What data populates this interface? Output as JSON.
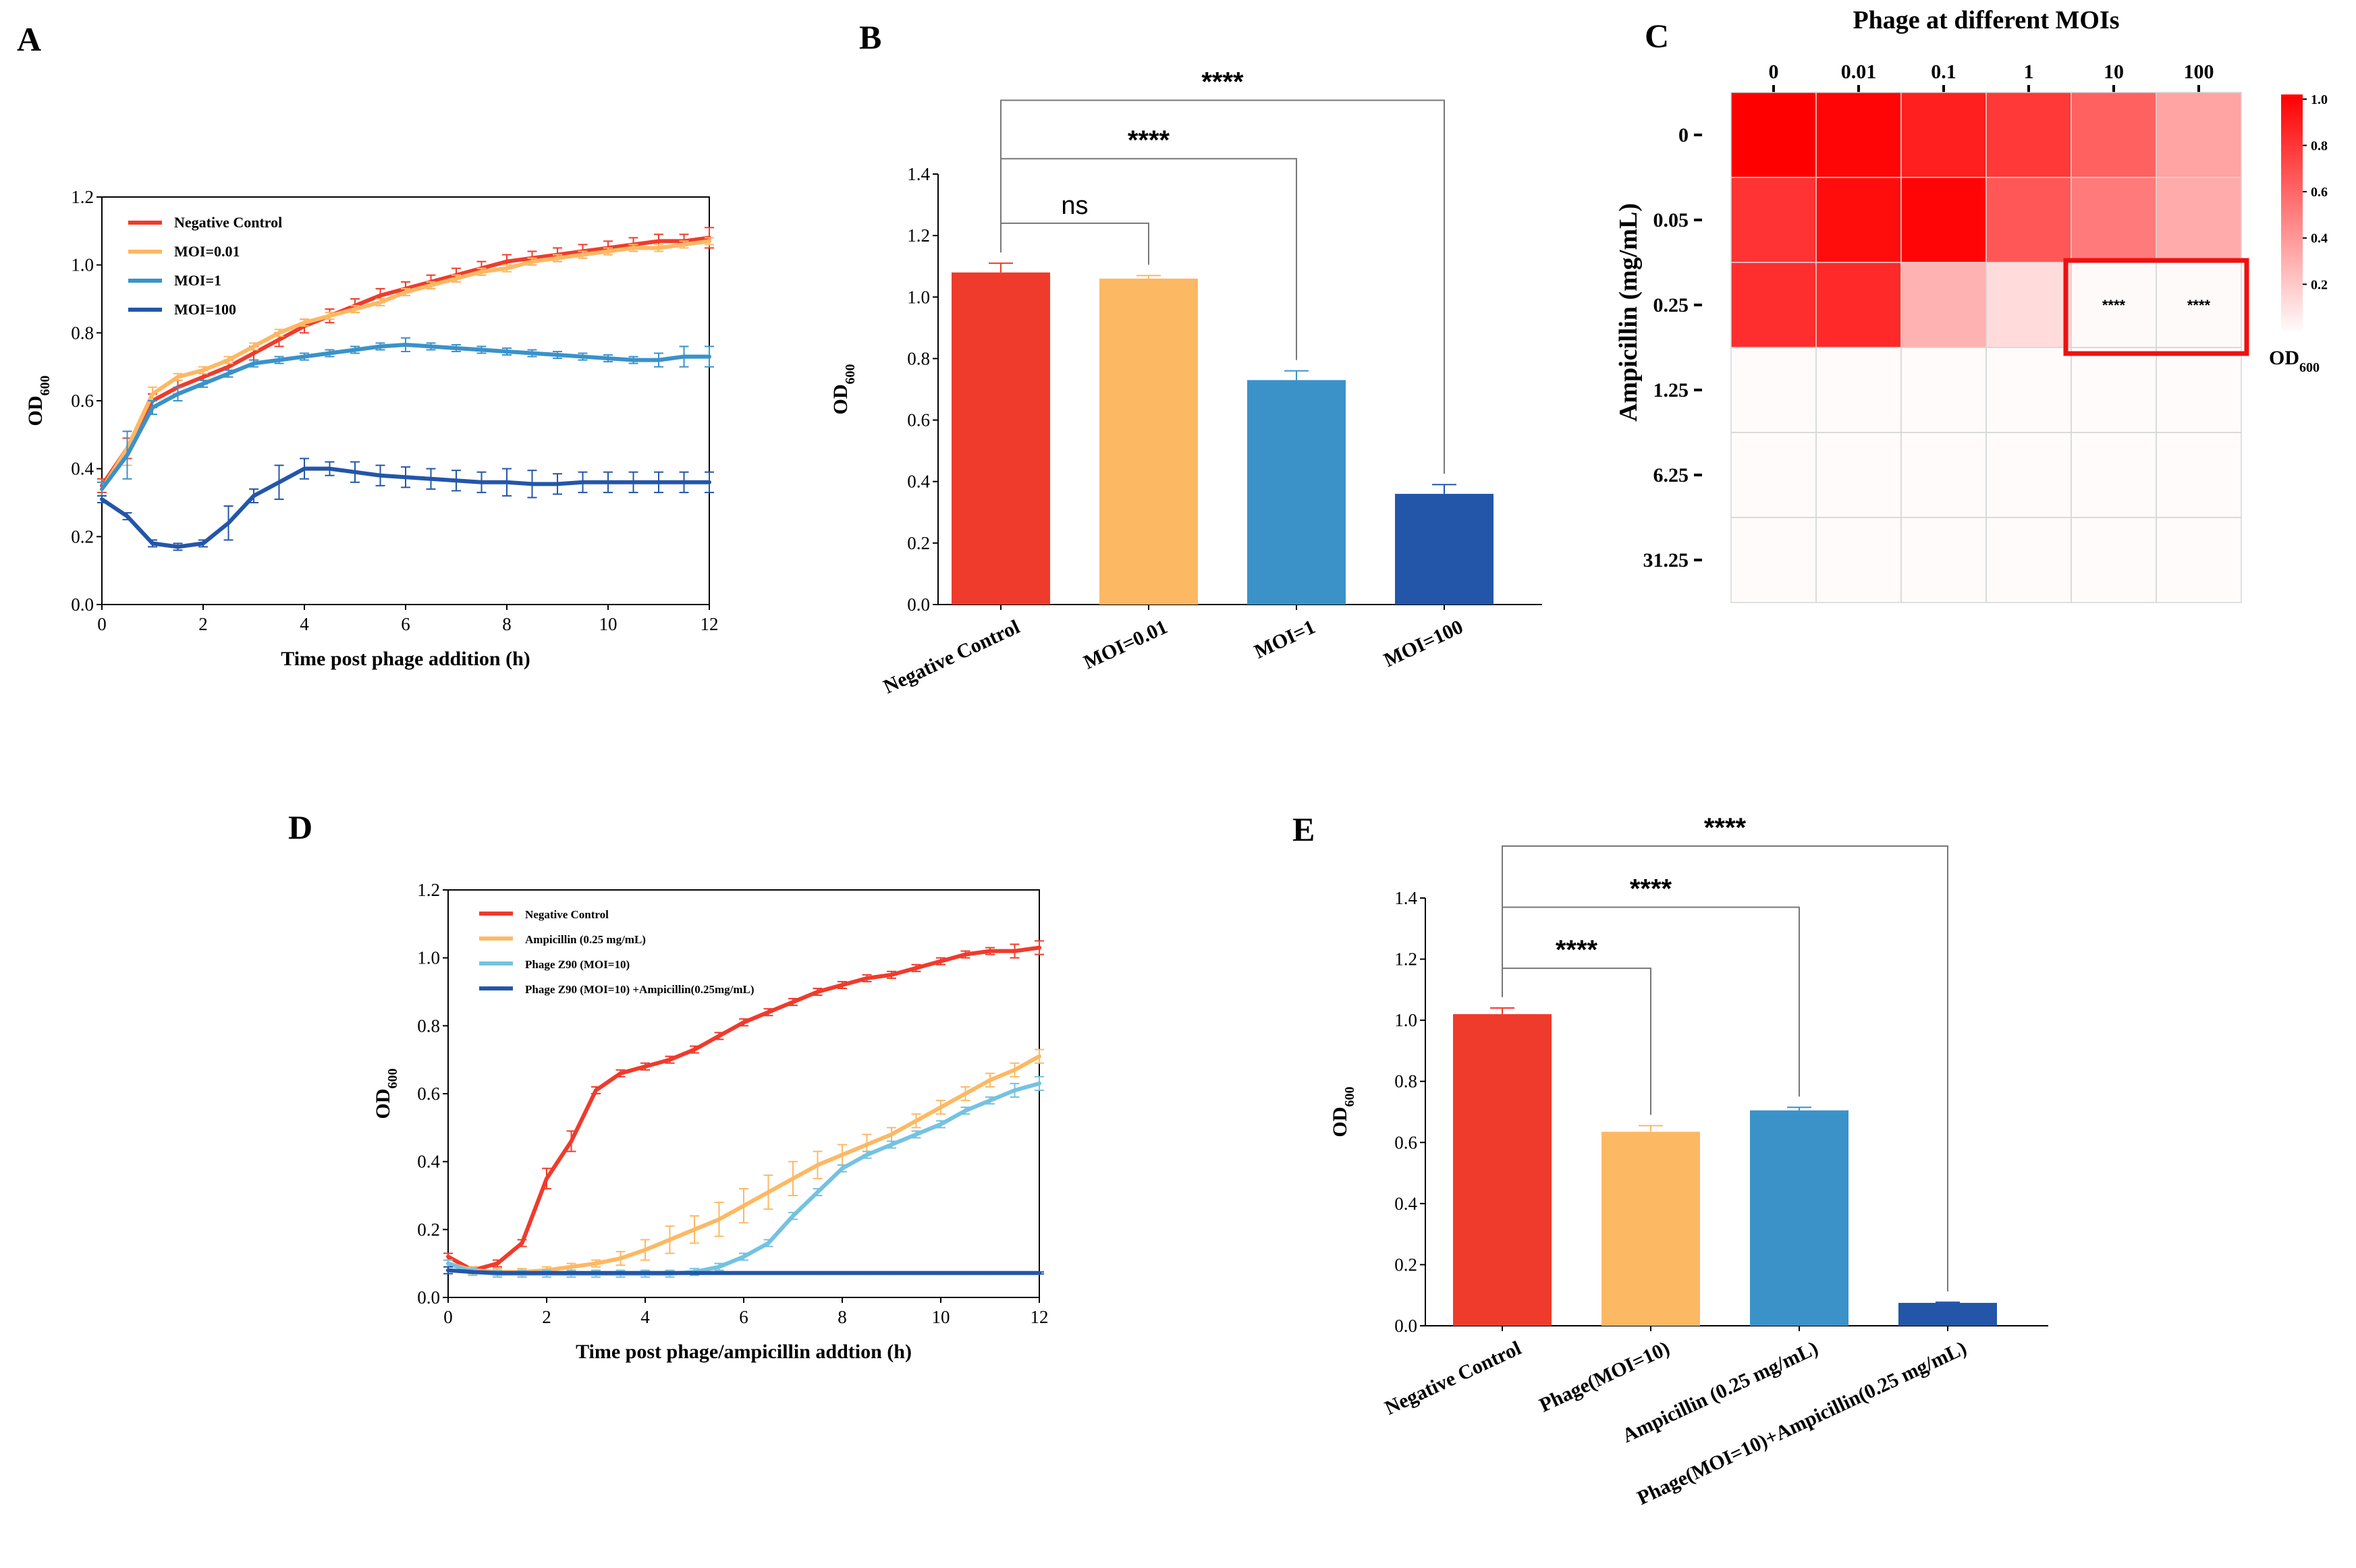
{
  "panel_labels": [
    "A",
    "B",
    "C",
    "D",
    "E"
  ],
  "colors": {
    "neg": "#ef3b2c",
    "orange": "#fdb863",
    "blue": "#3a92c9",
    "dblue": "#2356a8",
    "lblue": "#74c2e1",
    "heat": "#ff0000",
    "highlight": "#ee1111"
  },
  "chart_data": [
    {
      "id": "A",
      "type": "line",
      "xlabel": "Time post phage addition (h)",
      "ylabel": "OD",
      "ylabel_sub": "600",
      "xlim": [
        0,
        12
      ],
      "ylim": [
        0,
        1.2
      ],
      "xticks": [
        "0",
        "2",
        "4",
        "6",
        "8",
        "10",
        "12"
      ],
      "yticks": [
        "0.0",
        "0.2",
        "0.4",
        "0.6",
        "0.8",
        "1.0",
        "1.2"
      ],
      "x": [
        0,
        0.5,
        1,
        1.5,
        2,
        2.5,
        3,
        3.5,
        4,
        4.5,
        5,
        5.5,
        6,
        6.5,
        7,
        7.5,
        8,
        8.5,
        9,
        9.5,
        10,
        10.5,
        11,
        11.5,
        12
      ],
      "series": [
        {
          "name": "Negative Control",
          "color": "#ef3b2c",
          "values": [
            0.35,
            0.46,
            0.6,
            0.64,
            0.67,
            0.7,
            0.74,
            0.78,
            0.82,
            0.85,
            0.88,
            0.91,
            0.93,
            0.95,
            0.97,
            0.99,
            1.01,
            1.02,
            1.03,
            1.04,
            1.05,
            1.06,
            1.07,
            1.07,
            1.08
          ],
          "errors": [
            0.02,
            0.03,
            0.02,
            0.02,
            0.02,
            0.02,
            0.02,
            0.02,
            0.02,
            0.02,
            0.02,
            0.02,
            0.02,
            0.02,
            0.02,
            0.02,
            0.02,
            0.02,
            0.02,
            0.02,
            0.02,
            0.02,
            0.02,
            0.02,
            0.03
          ]
        },
        {
          "name": "MOI=0.01",
          "color": "#fdb863",
          "values": [
            0.34,
            0.46,
            0.62,
            0.67,
            0.69,
            0.72,
            0.76,
            0.8,
            0.83,
            0.85,
            0.87,
            0.89,
            0.92,
            0.94,
            0.96,
            0.98,
            0.99,
            1.01,
            1.02,
            1.03,
            1.04,
            1.05,
            1.05,
            1.06,
            1.07
          ],
          "errors": [
            0.02,
            0.05,
            0.02,
            0.01,
            0.01,
            0.01,
            0.01,
            0.01,
            0.01,
            0.01,
            0.01,
            0.01,
            0.01,
            0.01,
            0.01,
            0.01,
            0.01,
            0.01,
            0.01,
            0.01,
            0.01,
            0.01,
            0.01,
            0.01,
            0.01
          ]
        },
        {
          "name": "MOI=1",
          "color": "#3a92c9",
          "values": [
            0.34,
            0.44,
            0.58,
            0.62,
            0.65,
            0.68,
            0.71,
            0.72,
            0.73,
            0.74,
            0.75,
            0.76,
            0.765,
            0.76,
            0.755,
            0.75,
            0.745,
            0.74,
            0.735,
            0.73,
            0.725,
            0.72,
            0.72,
            0.73,
            0.73
          ],
          "errors": [
            0.02,
            0.07,
            0.02,
            0.02,
            0.01,
            0.01,
            0.01,
            0.01,
            0.01,
            0.01,
            0.01,
            0.01,
            0.02,
            0.01,
            0.01,
            0.01,
            0.01,
            0.01,
            0.01,
            0.01,
            0.01,
            0.01,
            0.02,
            0.03,
            0.03
          ]
        },
        {
          "name": "MOI=100",
          "color": "#2356a8",
          "values": [
            0.31,
            0.26,
            0.18,
            0.17,
            0.18,
            0.24,
            0.32,
            0.36,
            0.4,
            0.4,
            0.39,
            0.38,
            0.375,
            0.37,
            0.365,
            0.36,
            0.36,
            0.355,
            0.355,
            0.36,
            0.36,
            0.36,
            0.36,
            0.36,
            0.36
          ],
          "errors": [
            0.01,
            0.01,
            0.01,
            0.01,
            0.01,
            0.05,
            0.02,
            0.05,
            0.03,
            0.02,
            0.03,
            0.03,
            0.03,
            0.03,
            0.03,
            0.03,
            0.04,
            0.04,
            0.03,
            0.03,
            0.03,
            0.03,
            0.03,
            0.03,
            0.03
          ]
        }
      ]
    },
    {
      "id": "B",
      "type": "bar",
      "ylabel": "OD",
      "ylabel_sub": "600",
      "ylim": [
        0,
        1.4
      ],
      "yticks": [
        "0.0",
        "0.2",
        "0.4",
        "0.6",
        "0.8",
        "1.0",
        "1.2",
        "1.4"
      ],
      "categories": [
        "Negative Control",
        "MOI=0.01",
        "MOI=1",
        "MOI=100"
      ],
      "values": [
        1.08,
        1.06,
        0.73,
        0.36
      ],
      "errors": [
        0.03,
        0.01,
        0.03,
        0.03
      ],
      "bar_colors": [
        "#ef3b2c",
        "#fdb863",
        "#3a92c9",
        "#2356a8"
      ],
      "comparisons": [
        {
          "from": 0,
          "to": 1,
          "label": "ns",
          "level": 1.24
        },
        {
          "from": 0,
          "to": 2,
          "label": "****",
          "level": 1.45
        },
        {
          "from": 0,
          "to": 3,
          "label": "****",
          "level": 1.64
        }
      ]
    },
    {
      "id": "C",
      "type": "heatmap",
      "title": "Phage at different MOIs",
      "ylabel": "Ampicillin (mg/mL)",
      "colorbar_label": "OD",
      "colorbar_sub": "600",
      "colorbar_ticks": [
        "1.0",
        "0.8",
        "0.6",
        "0.4",
        "0.2"
      ],
      "colorbar_tick_values": [
        1.0,
        0.8,
        0.6,
        0.4,
        0.2
      ],
      "columns": [
        "0",
        "0.01",
        "0.1",
        "1",
        "10",
        "100"
      ],
      "rows": [
        "0",
        "0.05",
        "0.25",
        "1.25",
        "6.25",
        "31.25"
      ],
      "values": [
        [
          1.0,
          0.98,
          0.88,
          0.78,
          0.62,
          0.36
        ],
        [
          0.8,
          0.95,
          0.98,
          0.66,
          0.52,
          0.33
        ],
        [
          0.82,
          0.84,
          0.3,
          0.14,
          0.02,
          0.02
        ],
        [
          0.01,
          0.01,
          0.01,
          0.01,
          0.01,
          0.01
        ],
        [
          0.01,
          0.01,
          0.01,
          0.01,
          0.01,
          0.01
        ],
        [
          0.01,
          0.01,
          0.01,
          0.01,
          0.01,
          0.01
        ]
      ],
      "annotations": [
        {
          "row": 2,
          "col": 4,
          "label": "****"
        },
        {
          "row": 2,
          "col": 5,
          "label": "****"
        }
      ]
    },
    {
      "id": "D",
      "type": "line",
      "xlabel": "Time post phage/ampicillin addtion (h)",
      "ylabel": "OD",
      "ylabel_sub": "600",
      "xlim": [
        0,
        12
      ],
      "ylim": [
        0,
        1.2
      ],
      "xticks": [
        "0",
        "2",
        "4",
        "6",
        "8",
        "10",
        "12"
      ],
      "yticks": [
        "0.0",
        "0.2",
        "0.4",
        "0.6",
        "0.8",
        "1.0",
        "1.2"
      ],
      "x": [
        0,
        0.5,
        1,
        1.5,
        2,
        2.5,
        3,
        3.5,
        4,
        4.5,
        5,
        5.5,
        6,
        6.5,
        7,
        7.5,
        8,
        8.5,
        9,
        9.5,
        10,
        10.5,
        11,
        11.5,
        12
      ],
      "series": [
        {
          "name": "Negative Control",
          "color": "#ef3b2c",
          "values": [
            0.12,
            0.08,
            0.1,
            0.16,
            0.35,
            0.46,
            0.61,
            0.66,
            0.68,
            0.7,
            0.73,
            0.77,
            0.81,
            0.84,
            0.87,
            0.9,
            0.92,
            0.94,
            0.95,
            0.97,
            0.99,
            1.01,
            1.02,
            1.02,
            1.03
          ],
          "errors": [
            0.01,
            0.01,
            0.01,
            0.01,
            0.03,
            0.03,
            0.01,
            0.01,
            0.01,
            0.01,
            0.01,
            0.01,
            0.01,
            0.01,
            0.01,
            0.01,
            0.01,
            0.01,
            0.01,
            0.01,
            0.01,
            0.01,
            0.01,
            0.02,
            0.02
          ]
        },
        {
          "name": "Ampicillin (0.25 mg/mL)",
          "color": "#fdb863",
          "values": [
            0.1,
            0.08,
            0.075,
            0.075,
            0.08,
            0.09,
            0.1,
            0.115,
            0.14,
            0.17,
            0.2,
            0.23,
            0.27,
            0.31,
            0.35,
            0.39,
            0.42,
            0.45,
            0.48,
            0.52,
            0.56,
            0.6,
            0.64,
            0.67,
            0.71
          ],
          "errors": [
            0.01,
            0.01,
            0.01,
            0.01,
            0.01,
            0.01,
            0.01,
            0.02,
            0.03,
            0.04,
            0.04,
            0.05,
            0.05,
            0.05,
            0.05,
            0.04,
            0.03,
            0.03,
            0.02,
            0.02,
            0.02,
            0.02,
            0.02,
            0.02,
            0.02
          ]
        },
        {
          "name": "Phage Z90 (MOI=10)",
          "color": "#74c2e1",
          "values": [
            0.1,
            0.075,
            0.07,
            0.07,
            0.07,
            0.07,
            0.07,
            0.07,
            0.07,
            0.07,
            0.075,
            0.09,
            0.12,
            0.16,
            0.24,
            0.31,
            0.38,
            0.42,
            0.45,
            0.48,
            0.51,
            0.55,
            0.58,
            0.61,
            0.63
          ],
          "errors": [
            0.01,
            0.01,
            0.01,
            0.01,
            0.01,
            0.01,
            0.01,
            0.01,
            0.01,
            0.01,
            0.01,
            0.01,
            0.01,
            0.01,
            0.01,
            0.01,
            0.01,
            0.01,
            0.01,
            0.01,
            0.01,
            0.01,
            0.01,
            0.02,
            0.02
          ]
        },
        {
          "name": "Phage Z90 (MOI=10) +Ampicillin(0.25mg/mL)",
          "color": "#2356a8",
          "values": [
            0.08,
            0.075,
            0.072,
            0.072,
            0.072,
            0.072,
            0.072,
            0.072,
            0.072,
            0.072,
            0.072,
            0.072,
            0.072,
            0.072,
            0.072,
            0.072,
            0.072,
            0.072,
            0.072,
            0.072,
            0.072,
            0.072,
            0.072,
            0.072,
            0.072
          ],
          "errors": [
            0.01,
            0.003,
            0.003,
            0.003,
            0.003,
            0.003,
            0.003,
            0.003,
            0.003,
            0.003,
            0.003,
            0.003,
            0.003,
            0.003,
            0.003,
            0.003,
            0.003,
            0.003,
            0.003,
            0.003,
            0.003,
            0.003,
            0.003,
            0.003,
            0.003
          ]
        }
      ]
    },
    {
      "id": "E",
      "type": "bar",
      "ylabel": "OD",
      "ylabel_sub": "600",
      "ylim": [
        0,
        1.4
      ],
      "yticks": [
        "0.0",
        "0.2",
        "0.4",
        "0.6",
        "0.8",
        "1.0",
        "1.2",
        "1.4"
      ],
      "categories": [
        "Negative Control",
        "Phage(MOI=10)",
        "Ampicillin (0.25 mg/mL)",
        "Phage(MOI=10)+Ampicillin(0.25 mg/mL)"
      ],
      "values": [
        1.02,
        0.635,
        0.705,
        0.075
      ],
      "errors": [
        0.02,
        0.02,
        0.01,
        0.002
      ],
      "bar_colors": [
        "#ef3b2c",
        "#fdb863",
        "#3a92c9",
        "#2356a8"
      ],
      "comparisons": [
        {
          "from": 0,
          "to": 1,
          "label": "****",
          "level": 1.17
        },
        {
          "from": 0,
          "to": 2,
          "label": "****",
          "level": 1.37
        },
        {
          "from": 0,
          "to": 3,
          "label": "****",
          "level": 1.57
        }
      ]
    }
  ]
}
